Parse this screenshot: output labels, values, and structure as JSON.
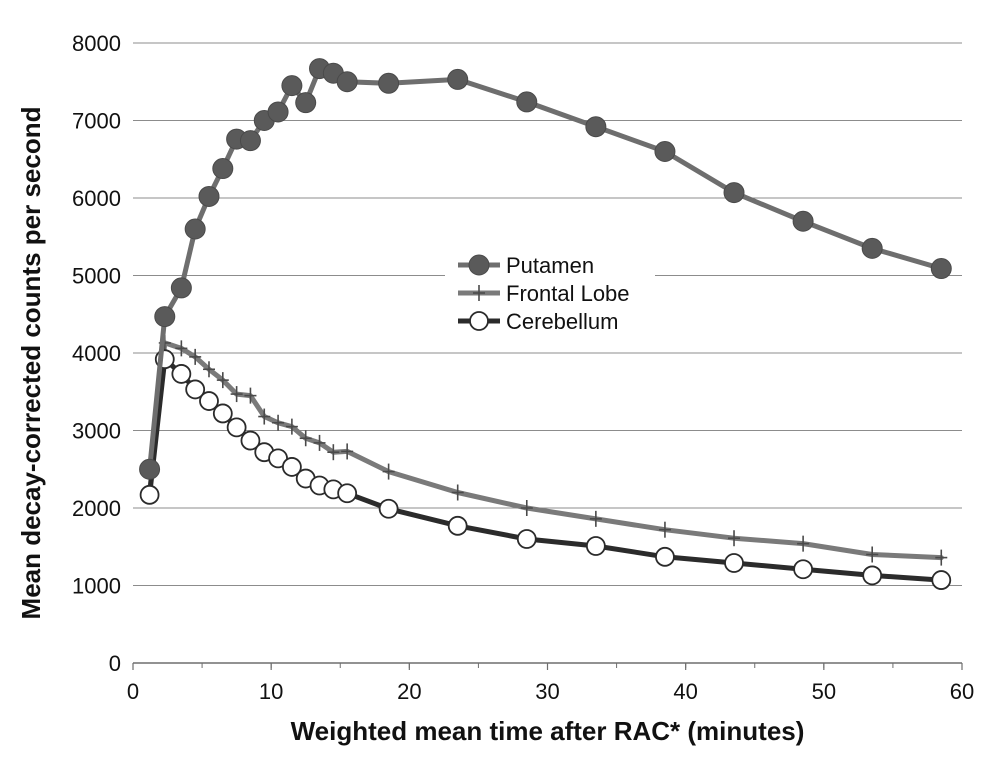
{
  "chart_data": {
    "type": "line",
    "title": "",
    "xlabel": "Weighted mean time after RAC* (minutes)",
    "ylabel": "Mean decay-corrected counts per second",
    "xlim": [
      0,
      60
    ],
    "ylim": [
      0,
      8000
    ],
    "xticks": [
      "0",
      "10",
      "20",
      "30",
      "40",
      "50",
      "60"
    ],
    "yticks": [
      "0",
      "1000",
      "2000",
      "3000",
      "4000",
      "5000",
      "6000",
      "7000",
      "8000"
    ],
    "grid": "horizontal",
    "legend_position": "center-right",
    "series": [
      {
        "name": "Putamen",
        "color": "#6e6e6e",
        "marker": "filled-circle",
        "points": [
          [
            1.2,
            2500
          ],
          [
            2.3,
            4470
          ],
          [
            3.5,
            4840
          ],
          [
            4.5,
            5600
          ],
          [
            5.5,
            6020
          ],
          [
            6.5,
            6380
          ],
          [
            7.5,
            6760
          ],
          [
            8.5,
            6740
          ],
          [
            9.5,
            7000
          ],
          [
            10.5,
            7110
          ],
          [
            11.5,
            7450
          ],
          [
            12.5,
            7230
          ],
          [
            13.5,
            7670
          ],
          [
            14.5,
            7610
          ],
          [
            15.5,
            7500
          ],
          [
            18.5,
            7480
          ],
          [
            23.5,
            7530
          ],
          [
            28.5,
            7240
          ],
          [
            33.5,
            6920
          ],
          [
            38.5,
            6600
          ],
          [
            43.5,
            6070
          ],
          [
            48.5,
            5700
          ],
          [
            53.5,
            5350
          ],
          [
            58.5,
            5090
          ]
        ]
      },
      {
        "name": "Frontal Lobe",
        "color": "#7a7a7a",
        "marker": "plus",
        "points": [
          [
            1.2,
            2200
          ],
          [
            2.3,
            4130
          ],
          [
            3.5,
            4060
          ],
          [
            4.5,
            3950
          ],
          [
            5.5,
            3790
          ],
          [
            6.5,
            3650
          ],
          [
            7.5,
            3470
          ],
          [
            8.5,
            3450
          ],
          [
            9.5,
            3180
          ],
          [
            10.5,
            3100
          ],
          [
            11.5,
            3050
          ],
          [
            12.5,
            2900
          ],
          [
            13.5,
            2840
          ],
          [
            14.5,
            2720
          ],
          [
            15.5,
            2730
          ],
          [
            18.5,
            2470
          ],
          [
            23.5,
            2200
          ],
          [
            28.5,
            2000
          ],
          [
            33.5,
            1860
          ],
          [
            38.5,
            1720
          ],
          [
            43.5,
            1610
          ],
          [
            48.5,
            1540
          ],
          [
            53.5,
            1400
          ],
          [
            58.5,
            1360
          ]
        ]
      },
      {
        "name": "Cerebellum",
        "color": "#2b2b2b",
        "marker": "open-circle",
        "points": [
          [
            1.2,
            2170
          ],
          [
            2.3,
            3920
          ],
          [
            3.5,
            3730
          ],
          [
            4.5,
            3530
          ],
          [
            5.5,
            3380
          ],
          [
            6.5,
            3220
          ],
          [
            7.5,
            3040
          ],
          [
            8.5,
            2870
          ],
          [
            9.5,
            2720
          ],
          [
            10.5,
            2640
          ],
          [
            11.5,
            2530
          ],
          [
            12.5,
            2380
          ],
          [
            13.5,
            2290
          ],
          [
            14.5,
            2240
          ],
          [
            15.5,
            2190
          ],
          [
            18.5,
            1990
          ],
          [
            23.5,
            1770
          ],
          [
            28.5,
            1600
          ],
          [
            33.5,
            1510
          ],
          [
            38.5,
            1370
          ],
          [
            43.5,
            1290
          ],
          [
            48.5,
            1210
          ],
          [
            53.5,
            1130
          ],
          [
            58.5,
            1070
          ]
        ]
      }
    ]
  }
}
